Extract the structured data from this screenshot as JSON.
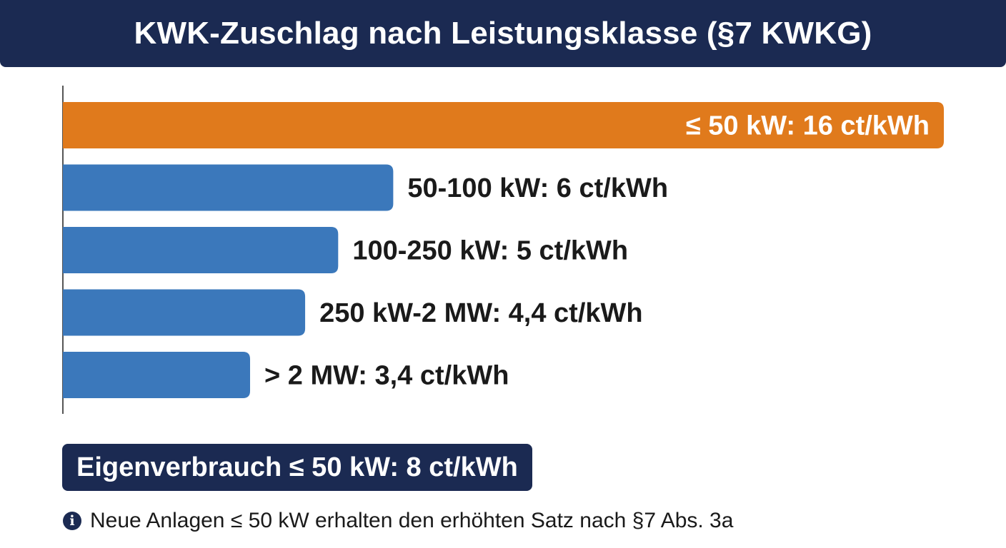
{
  "header": {
    "title": "KWK-Zuschlag nach Leistungsklasse (§7 KWKG)"
  },
  "colors": {
    "highlight": "#e07a1c",
    "bar": "#3b78bb",
    "header_bg": "#1b2a52",
    "axis": "#555555"
  },
  "chart_data": {
    "type": "bar",
    "orientation": "horizontal",
    "categories": [
      "≤ 50 kW",
      "50-100 kW",
      "100-250 kW",
      "250 kW-2 MW",
      "> 2 MW"
    ],
    "values": [
      16,
      6,
      5,
      4.4,
      3.4
    ],
    "unit": "ct/kWh",
    "labels": [
      "≤ 50 kW: 16 ct/kWh",
      "50-100 kW: 6 ct/kWh",
      "100-250 kW: 5 ct/kWh",
      "250 kW-2 MW: 4,4 ct/kWh",
      "> 2 MW: 3,4 ct/kWh"
    ],
    "highlight_index": 0,
    "xlim": [
      0,
      16
    ],
    "grid": false,
    "legend": "none"
  },
  "note": {
    "label": "Eigenverbrauch ≤ 50 kW: 8 ct/kWh"
  },
  "footnote": {
    "icon": "info-icon",
    "text": "Neue Anlagen ≤ 50 kW erhalten den erhöhten Satz nach §7 Abs. 3a"
  }
}
